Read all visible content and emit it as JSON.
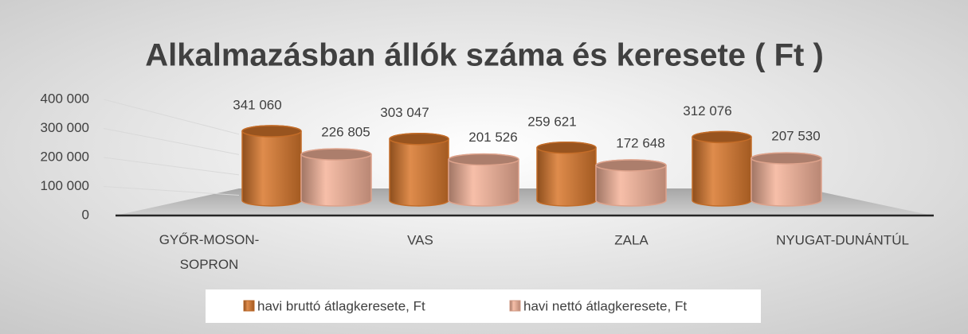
{
  "chart_data": {
    "type": "bar",
    "title": "Alkalmazásban állók száma és keresete ( Ft )",
    "categories": [
      "GYŐR-MOSON-SOPRON",
      "VAS",
      "ZALA",
      "NYUGAT-DUNÁNTÚL"
    ],
    "series": [
      {
        "name": "havi bruttó átlagkeresete, Ft",
        "color": "#d9782c",
        "values": [
          341060,
          303047,
          259621,
          312076
        ],
        "value_labels": [
          "341 060",
          "303 047",
          "259 621",
          "312 076"
        ]
      },
      {
        "name": "havi nettó átlagkeresete, Ft",
        "color": "#f6b49a",
        "values": [
          226805,
          201526,
          172648,
          207530
        ],
        "value_labels": [
          "226 805",
          "201 526",
          "172 648",
          "207 530"
        ]
      }
    ],
    "ylim": [
      0,
      400000
    ],
    "yticks": [
      {
        "value": 0,
        "label": "0"
      },
      {
        "value": 100000,
        "label": "100 000"
      },
      {
        "value": 200000,
        "label": "200 000"
      },
      {
        "value": 300000,
        "label": "300 000"
      },
      {
        "value": 400000,
        "label": "400 000"
      }
    ],
    "grid": true,
    "legend": "bottom"
  }
}
